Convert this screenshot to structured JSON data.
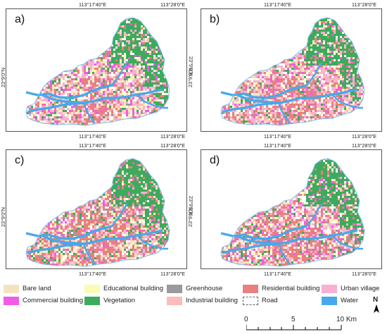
{
  "panels": [
    {
      "label": "a)",
      "top_left": "113°17'40\"E",
      "top_right": "113°28'0\"E",
      "bottom_left": "113°17'40\"E",
      "bottom_right": "113°28'0\"E",
      "lat": "23°9'0\"N"
    },
    {
      "label": "b)",
      "top_left": "113°17'40\"E",
      "top_right": "113°28'0\"E",
      "bottom_left": "113°17'40\"E",
      "bottom_right": "113°28'0\"E",
      "lat": "23°9'0\"N"
    },
    {
      "label": "c)",
      "top_left": "113°17'40\"E",
      "top_right": "113°28'0\"E",
      "bottom_left": "113°17'40\"E",
      "bottom_right": "113°28'0\"E",
      "lat": "23°9'0\"N"
    },
    {
      "label": "d)",
      "top_left": "113°17'40\"E",
      "top_right": "113°28'0\"E",
      "bottom_left": "113°17'40\"E",
      "bottom_right": "113°28'0\"E",
      "lat": "23°9'0\"N"
    }
  ],
  "legend": [
    {
      "label": "Bare land",
      "color": "#f3e3c0"
    },
    {
      "label": "Commercial building",
      "color": "#f05ce6"
    },
    {
      "label": "Educational building",
      "color": "#fbfbb4"
    },
    {
      "label": "Vegetation",
      "color": "#3cab5c"
    },
    {
      "label": "Greenhouse",
      "color": "#9a9a9a"
    },
    {
      "label": "Industrial building",
      "color": "#fbbcbc"
    },
    {
      "label": "Residential building",
      "color": "#e88080"
    },
    {
      "label": "Road",
      "color": "#ffffff"
    },
    {
      "label": "Urban village",
      "color": "#f8b0d2"
    },
    {
      "label": "Water",
      "color": "#47a9ec"
    }
  ],
  "north_label": "N",
  "scale": {
    "ticks": [
      "0",
      "5",
      "10 Km"
    ]
  }
}
